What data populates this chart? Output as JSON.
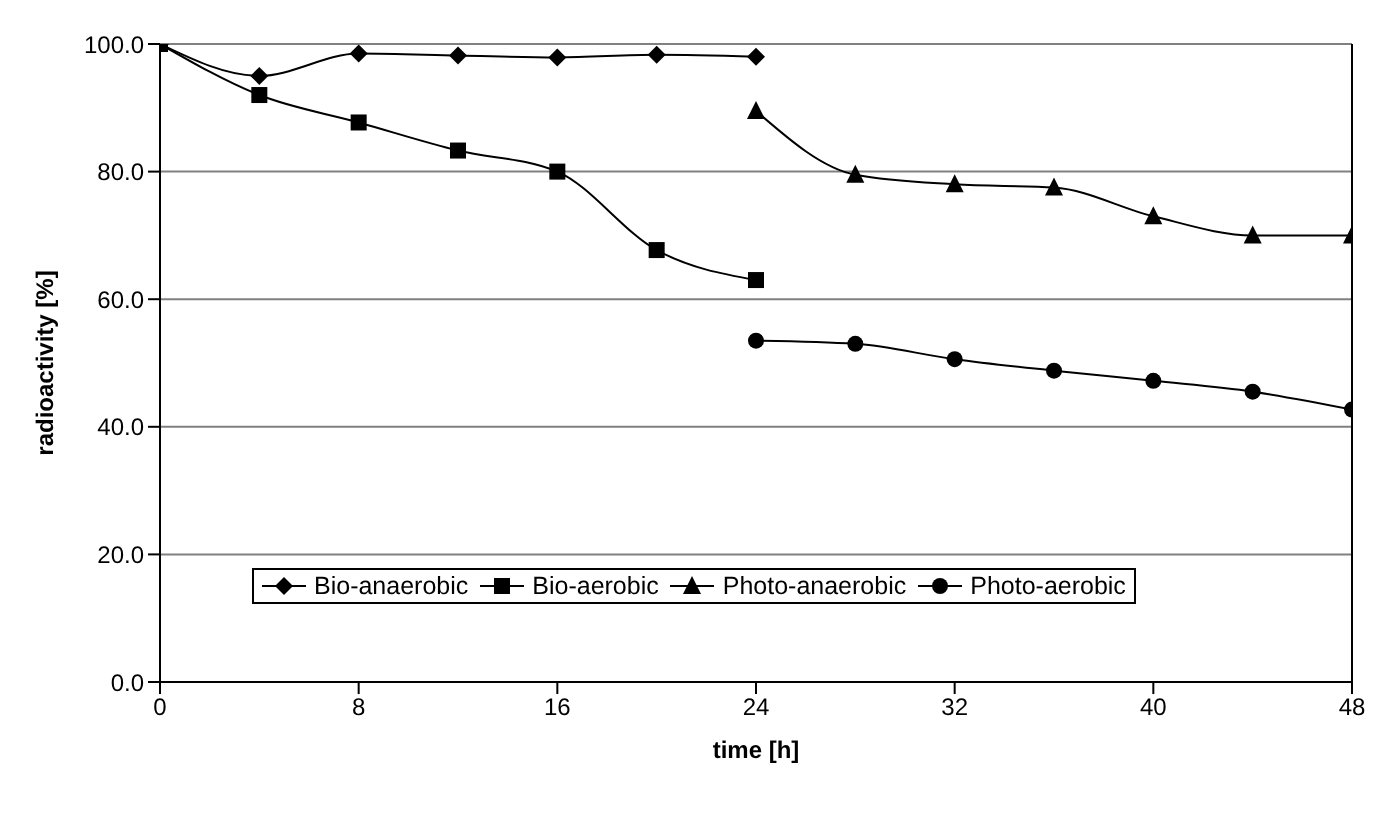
{
  "chart_data": {
    "type": "line",
    "xlabel": "time [h]",
    "ylabel": "radioactivity [%]",
    "xlim": [
      0,
      48
    ],
    "xticks": [
      0,
      8,
      16,
      24,
      32,
      40,
      48
    ],
    "ylim": [
      0,
      100
    ],
    "yticks": [
      {
        "value": 0,
        "label": "0.0"
      },
      {
        "value": 20,
        "label": "20.0"
      },
      {
        "value": 40,
        "label": "40.0"
      },
      {
        "value": 60,
        "label": "60.0"
      },
      {
        "value": 80,
        "label": "80.0"
      },
      {
        "value": 100,
        "label": "100.0"
      }
    ],
    "grid": "y",
    "legend": "bottom",
    "series": [
      {
        "name": "Bio-anaerobic",
        "color": "#000000",
        "marker": "diamond",
        "x": [
          0,
          4,
          8,
          12,
          16,
          20,
          24
        ],
        "values": [
          100,
          95,
          98.5,
          98.2,
          97.9,
          98.3,
          98
        ]
      },
      {
        "name": "Bio-aerobic",
        "color": "#000000",
        "marker": "square",
        "x": [
          0,
          4,
          8,
          12,
          16,
          20,
          24
        ],
        "values": [
          100,
          92,
          87.7,
          83.3,
          80,
          67.7,
          63
        ]
      },
      {
        "name": "Photo-anaerobic",
        "color": "#000000",
        "marker": "triangle",
        "x": [
          24,
          28,
          32,
          36,
          40,
          44,
          48
        ],
        "values": [
          89.5,
          79.5,
          78,
          77.5,
          73,
          70,
          70
        ]
      },
      {
        "name": "Photo-aerobic",
        "color": "#000000",
        "marker": "circle",
        "x": [
          24,
          28,
          32,
          36,
          40,
          44,
          48
        ],
        "values": [
          53.5,
          53,
          50.6,
          48.8,
          47.2,
          45.5,
          42.7
        ]
      }
    ]
  }
}
